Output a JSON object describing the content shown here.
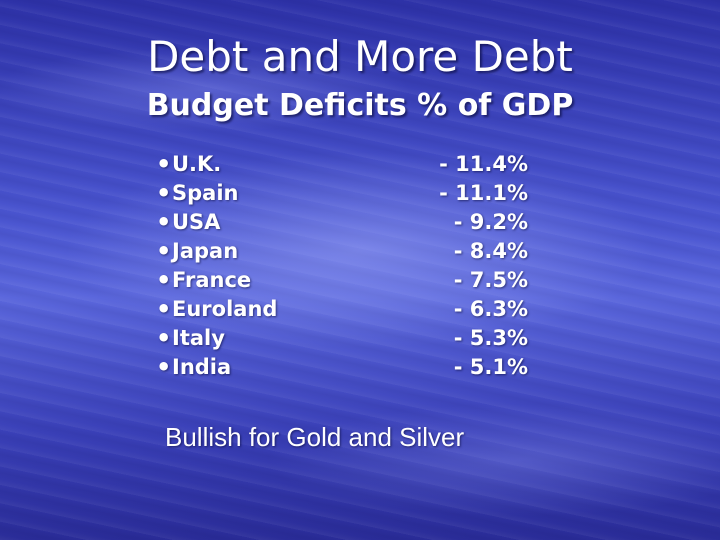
{
  "title": "Debt and More Debt",
  "subtitle": "Budget Deficits % of GDP",
  "bullet": "•",
  "items": [
    {
      "country": "U.K.",
      "value": "- 11.4%"
    },
    {
      "country": "Spain",
      "value": "- 11.1%"
    },
    {
      "country": "USA",
      "value": "- 9.2%"
    },
    {
      "country": "Japan",
      "value": "- 8.4%"
    },
    {
      "country": "France",
      "value": "- 7.5%"
    },
    {
      "country": "Euroland",
      "value": "- 6.3%"
    },
    {
      "country": "Italy",
      "value": "- 5.3%"
    },
    {
      "country": "India",
      "value": "- 5.1%"
    }
  ],
  "footer": "Bullish for Gold and Silver",
  "colors": {
    "background": "#3a3fb8",
    "text": "#ffffff"
  }
}
